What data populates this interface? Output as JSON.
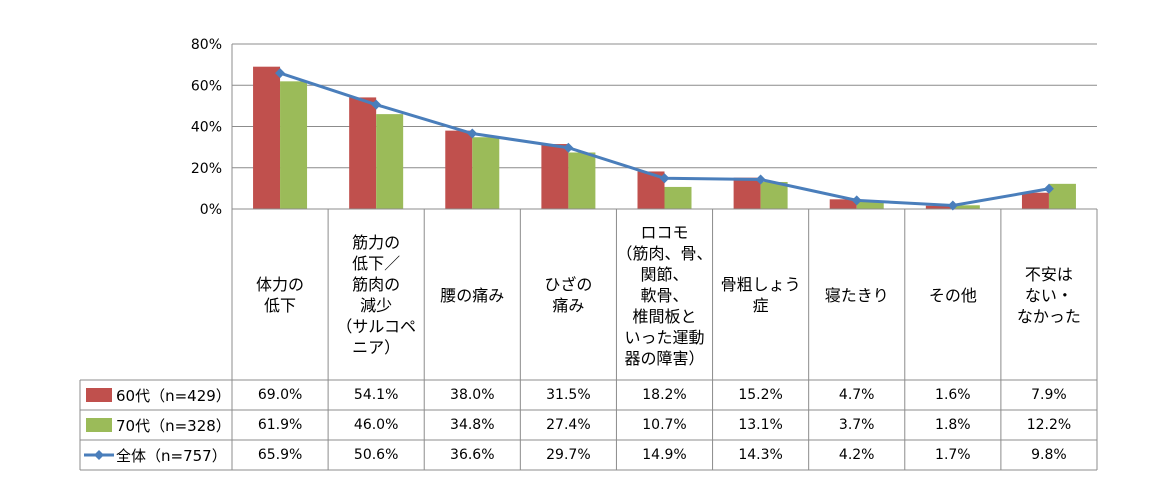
{
  "chart_data": {
    "type": "bar+line",
    "ylim": [
      0,
      80
    ],
    "yticks": [
      0,
      20,
      40,
      60,
      80
    ],
    "ytick_labels": [
      "0%",
      "20%",
      "40%",
      "60%",
      "80%"
    ],
    "grid": true,
    "categories": [
      "体力の\n低下",
      "筋力の\n低下／\n筋肉の\n減少\n（サルコペ\nニア）",
      "腰の痛み",
      "ひざの\n痛み",
      "ロコモ\n（筋肉、骨、\n関節、\n軟骨、\n椎間板と\nいった運動\n器の障害）",
      "骨粗しょう\n症",
      "寝たきり",
      "その他",
      "不安は\nない・\nなかった"
    ],
    "series": [
      {
        "name": "60代（n=429）",
        "kind": "bar",
        "color": "#c0504d",
        "values": [
          69.0,
          54.1,
          38.0,
          31.5,
          18.2,
          15.2,
          4.7,
          1.6,
          7.9
        ],
        "labels": [
          "69.0%",
          "54.1%",
          "38.0%",
          "31.5%",
          "18.2%",
          "15.2%",
          "4.7%",
          "1.6%",
          "7.9%"
        ]
      },
      {
        "name": "70代（n=328）",
        "kind": "bar",
        "color": "#9bbb59",
        "values": [
          61.9,
          46.0,
          34.8,
          27.4,
          10.7,
          13.1,
          3.7,
          1.8,
          12.2
        ],
        "labels": [
          "61.9%",
          "46.0%",
          "34.8%",
          "27.4%",
          "10.7%",
          "13.1%",
          "3.7%",
          "1.8%",
          "12.2%"
        ]
      },
      {
        "name": "全体（n=757）",
        "kind": "line",
        "color": "#4a7ebb",
        "values": [
          65.9,
          50.6,
          36.6,
          29.7,
          14.9,
          14.3,
          4.2,
          1.7,
          9.8
        ],
        "labels": [
          "65.9%",
          "50.6%",
          "36.6%",
          "29.7%",
          "14.9%",
          "14.3%",
          "4.2%",
          "1.7%",
          "9.8%"
        ]
      }
    ]
  }
}
